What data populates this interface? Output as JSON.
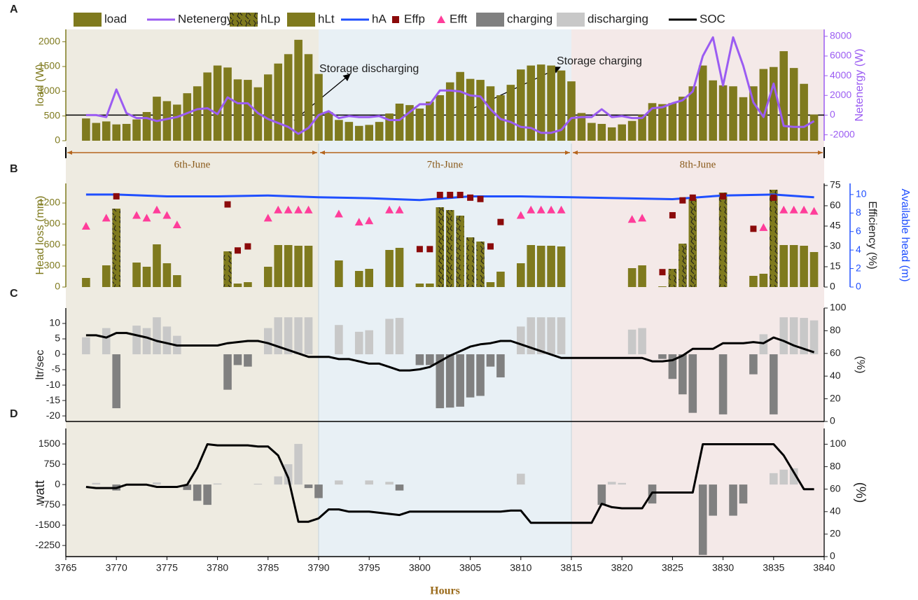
{
  "periods": [
    {
      "label": "6th-June",
      "start": 3765,
      "end": 3790,
      "color": "#eeebe1"
    },
    {
      "label": "7th-June",
      "start": 3790,
      "end": 3815,
      "color": "#e8f0f5"
    },
    {
      "label": "8th-June",
      "start": 3815,
      "end": 3840,
      "color": "#f4e9e8"
    }
  ],
  "chart_data": [
    {
      "label": "A",
      "type": "combo",
      "xlim": [
        3765,
        3840
      ],
      "ylim": [
        0,
        2250
      ],
      "yticks": [
        0,
        500,
        1000,
        1500,
        2000
      ],
      "ylabel": "load (W)",
      "y2lim": [
        -2600,
        8700
      ],
      "y2ticks": [
        -2000,
        0,
        2000,
        4000,
        6000,
        8000
      ],
      "y2label": "Netenergy (W)",
      "axis_colors": {
        "y": "#7f7a1e",
        "y2": "#9b5cf2"
      },
      "annotations": [
        "Storage discharging",
        "Storage charging"
      ],
      "x": [
        3767,
        3768,
        3769,
        3770,
        3771,
        3772,
        3773,
        3774,
        3775,
        3776,
        3777,
        3778,
        3779,
        3780,
        3781,
        3782,
        3783,
        3784,
        3785,
        3786,
        3787,
        3788,
        3789,
        3790,
        3791,
        3792,
        3793,
        3794,
        3795,
        3796,
        3797,
        3798,
        3799,
        3800,
        3801,
        3802,
        3803,
        3804,
        3805,
        3806,
        3807,
        3808,
        3809,
        3810,
        3811,
        3812,
        3813,
        3814,
        3815,
        3816,
        3817,
        3818,
        3819,
        3820,
        3821,
        3822,
        3823,
        3824,
        3825,
        3826,
        3827,
        3828,
        3829,
        3830,
        3831,
        3832,
        3833,
        3834,
        3835,
        3836,
        3837,
        3838,
        3839
      ],
      "series": [
        {
          "name": "load",
          "type": "bar",
          "color": "#7f7a1e",
          "values": [
            450,
            360,
            390,
            330,
            340,
            430,
            580,
            890,
            800,
            730,
            960,
            1100,
            1380,
            1520,
            1480,
            1240,
            1230,
            1080,
            1340,
            1560,
            1750,
            2040,
            1750,
            1350,
            580,
            420,
            380,
            300,
            320,
            380,
            550,
            750,
            720,
            650,
            790,
            920,
            1180,
            1390,
            1250,
            1230,
            1100,
            920,
            1130,
            1440,
            1520,
            1540,
            1520,
            1420,
            1200,
            560,
            360,
            340,
            270,
            330,
            400,
            520,
            760,
            740,
            760,
            890,
            1100,
            1520,
            1220,
            1120,
            1100,
            880,
            1100,
            1450,
            1490,
            1810,
            1470,
            1150,
            530
          ]
        },
        {
          "name": "Netenergy",
          "type": "line",
          "axis": "y2",
          "color": "#9b5cf2",
          "values": [
            0,
            0,
            -200,
            2600,
            200,
            -300,
            -300,
            -600,
            -400,
            -200,
            200,
            600,
            700,
            100,
            1800,
            1200,
            1200,
            200,
            -400,
            -800,
            -1200,
            -1900,
            -1300,
            0,
            400,
            -300,
            -100,
            -200,
            -200,
            -100,
            -500,
            -500,
            300,
            1100,
            1100,
            2500,
            2500,
            2400,
            2000,
            1900,
            600,
            -400,
            -700,
            -1200,
            -1300,
            -1800,
            -1800,
            -1500,
            -300,
            -200,
            -200,
            600,
            -200,
            -100,
            -300,
            -300,
            700,
            800,
            1200,
            1500,
            2400,
            6000,
            7900,
            3000,
            7900,
            5000,
            1300,
            -200,
            3200,
            -1100,
            -1200,
            -1200,
            -600
          ]
        }
      ]
    },
    {
      "label": "B",
      "type": "combo",
      "xlim": [
        3765,
        3840
      ],
      "ylim": [
        0,
        1480
      ],
      "yticks": [
        0,
        300,
        600,
        900,
        1200
      ],
      "ylabel": "Head loss (mm)",
      "y2lim": [
        0,
        76.5
      ],
      "y2ticks": [
        0,
        15,
        30,
        45,
        60,
        75
      ],
      "y2label": "Efficiency (%)",
      "y3lim": [
        0,
        11.2
      ],
      "y3ticks": [
        0,
        2,
        4,
        6,
        8,
        10
      ],
      "y3label": "Available head (m)",
      "axis_colors": {
        "y": "#7f7a1e",
        "y2": "#222222",
        "y3": "#1f4fff"
      },
      "series": [
        {
          "name": "hLp",
          "type": "bar",
          "hatch": true,
          "color": "#7f7a1e",
          "x": [
            3770,
            3781,
            3802,
            3803,
            3804,
            3805,
            3806,
            3825,
            3826,
            3827,
            3830,
            3835
          ],
          "values": [
            1120,
            510,
            1140,
            1100,
            1020,
            710,
            650,
            260,
            620,
            1260,
            1350,
            1390
          ]
        },
        {
          "name": "hLt",
          "type": "bar",
          "color": "#7f7a1e",
          "x": [
            3767,
            3769,
            3772,
            3773,
            3774,
            3775,
            3776,
            3782,
            3783,
            3785,
            3786,
            3787,
            3788,
            3789,
            3792,
            3794,
            3795,
            3797,
            3798,
            3800,
            3801,
            3807,
            3808,
            3810,
            3811,
            3812,
            3813,
            3814,
            3821,
            3822,
            3824,
            3833,
            3834,
            3836,
            3837,
            3838,
            3839
          ],
          "values": [
            130,
            310,
            350,
            290,
            610,
            340,
            170,
            50,
            70,
            290,
            600,
            600,
            590,
            590,
            380,
            230,
            260,
            530,
            560,
            50,
            50,
            70,
            220,
            340,
            600,
            590,
            590,
            580,
            270,
            310,
            10,
            160,
            190,
            600,
            600,
            590,
            500
          ]
        },
        {
          "name": "hA",
          "type": "line",
          "axis": "y3",
          "color": "#1f4fff",
          "x": [
            3767,
            3770,
            3775,
            3780,
            3785,
            3790,
            3795,
            3800,
            3805,
            3810,
            3815,
            3820,
            3825,
            3830,
            3835,
            3839
          ],
          "values": [
            10,
            10,
            9.8,
            9.8,
            9.9,
            9.7,
            9.6,
            9.4,
            9.8,
            9.8,
            9.7,
            9.6,
            9.5,
            9.9,
            10,
            9.7
          ]
        },
        {
          "name": "Effp",
          "type": "scatter",
          "marker": "square",
          "axis": "y2",
          "color": "#8b0a0a",
          "x": [
            3770,
            3781,
            3782,
            3783,
            3800,
            3801,
            3802,
            3803,
            3804,
            3805,
            3806,
            3807,
            3808,
            3824,
            3825,
            3826,
            3827,
            3830,
            3833,
            3835
          ],
          "values": [
            67,
            61,
            27,
            30,
            28,
            28,
            68,
            68,
            68,
            66,
            65,
            30,
            48,
            11,
            53,
            64,
            66,
            67,
            43,
            66
          ]
        },
        {
          "name": "Efft",
          "type": "scatter",
          "marker": "triangle",
          "axis": "y2",
          "color": "#ff3d9a",
          "x": [
            3767,
            3769,
            3772,
            3773,
            3774,
            3775,
            3776,
            3785,
            3786,
            3787,
            3788,
            3789,
            3792,
            3794,
            3795,
            3797,
            3798,
            3810,
            3811,
            3812,
            3813,
            3814,
            3821,
            3822,
            3834,
            3836,
            3837,
            3838,
            3839
          ],
          "values": [
            45,
            51,
            53,
            51,
            57,
            53,
            46,
            51,
            57,
            57,
            57,
            57,
            54,
            48,
            49,
            57,
            57,
            53,
            57,
            57,
            57,
            57,
            50,
            51,
            44,
            57,
            57,
            57,
            56
          ]
        }
      ]
    },
    {
      "label": "C",
      "type": "combo",
      "xlim": [
        3765,
        3840
      ],
      "ylim": [
        -21.8,
        15
      ],
      "yticks": [
        10,
        5,
        0,
        -5,
        -10,
        -15,
        -20
      ],
      "ylabel": "ltr/sec",
      "y2lim": [
        0,
        100
      ],
      "y2ticks": [
        0,
        20,
        40,
        60,
        80,
        100
      ],
      "y2label": "(%)",
      "axis_colors": {
        "y": "#222222",
        "y2": "#222222"
      },
      "series": [
        {
          "name": "charging",
          "type": "bar",
          "color": "#808080",
          "x": [
            3770,
            3781,
            3782,
            3783,
            3800,
            3801,
            3802,
            3803,
            3804,
            3805,
            3806,
            3807,
            3808,
            3824,
            3825,
            3826,
            3827,
            3830,
            3833,
            3835
          ],
          "values": [
            -17.5,
            -11.5,
            -3.5,
            -4,
            -3.5,
            -3.5,
            -17.5,
            -17.3,
            -17,
            -14,
            -13.5,
            -4,
            -7.5,
            -1.5,
            -8,
            -13,
            -19,
            -19.5,
            -6.5,
            -19.5
          ]
        },
        {
          "name": "discharging",
          "type": "bar",
          "color": "#c8c8c8",
          "x": [
            3767,
            3769,
            3772,
            3773,
            3774,
            3775,
            3776,
            3785,
            3786,
            3787,
            3788,
            3789,
            3792,
            3794,
            3795,
            3797,
            3798,
            3810,
            3811,
            3812,
            3813,
            3814,
            3821,
            3822,
            3834,
            3836,
            3837,
            3838,
            3839
          ],
          "values": [
            5.5,
            8.5,
            9.3,
            8.5,
            12,
            9,
            6,
            8.5,
            12,
            12,
            12,
            12,
            9.5,
            7.3,
            7.8,
            11.5,
            11.8,
            9,
            12,
            12,
            12,
            12,
            8,
            8.5,
            6.5,
            12,
            12,
            11.8,
            11
          ]
        },
        {
          "name": "SOC",
          "type": "line",
          "axis": "y2",
          "color": "#000000",
          "x": [
            3767,
            3768,
            3769,
            3770,
            3771,
            3772,
            3773,
            3774,
            3775,
            3776,
            3780,
            3781,
            3782,
            3783,
            3784,
            3785,
            3786,
            3787,
            3788,
            3789,
            3791,
            3792,
            3793,
            3794,
            3795,
            3796,
            3797,
            3798,
            3799,
            3800,
            3801,
            3802,
            3803,
            3804,
            3805,
            3806,
            3807,
            3808,
            3809,
            3810,
            3811,
            3812,
            3813,
            3814,
            3822,
            3823,
            3824,
            3825,
            3826,
            3827,
            3829,
            3830,
            3832,
            3833,
            3834,
            3835,
            3836,
            3837,
            3838,
            3839
          ],
          "values": [
            76,
            76,
            74,
            78,
            78,
            76,
            74,
            71,
            69,
            67,
            67,
            69,
            70,
            71,
            71,
            69,
            66,
            63,
            60,
            57,
            57,
            55,
            55,
            53,
            51,
            51,
            48,
            45,
            45,
            46,
            48,
            53,
            58,
            62,
            66,
            68,
            69,
            71,
            71,
            68,
            65,
            62,
            59,
            56,
            56,
            53,
            53,
            54,
            58,
            64,
            64,
            69,
            69,
            70,
            69,
            74,
            71,
            67,
            64,
            61
          ]
        }
      ]
    },
    {
      "label": "D",
      "type": "combo",
      "xlim": [
        3765,
        3840
      ],
      "xticks": [
        3765,
        3770,
        3775,
        3780,
        3785,
        3790,
        3795,
        3800,
        3805,
        3810,
        3815,
        3820,
        3825,
        3830,
        3835,
        3840
      ],
      "xlabel": "Hours",
      "ylim": [
        -2660,
        2070
      ],
      "yticks": [
        1500,
        750,
        0,
        -750,
        -1500,
        -2250
      ],
      "ylabel": "watt",
      "y2lim": [
        0,
        114
      ],
      "y2ticks": [
        0,
        20,
        40,
        60,
        80,
        100
      ],
      "y2label": "(%)",
      "axis_colors": {
        "y": "#222222",
        "y2": "#222222"
      },
      "series": [
        {
          "type": "bar",
          "color": "#808080",
          "x": [
            3770,
            3777,
            3778,
            3779,
            3789,
            3790,
            3798,
            3818,
            3823,
            3828,
            3829,
            3831,
            3832
          ],
          "values": [
            -220,
            -200,
            -600,
            -750,
            -130,
            -500,
            -220,
            -750,
            -700,
            -2600,
            -1150,
            -1150,
            -700
          ]
        },
        {
          "type": "bar",
          "color": "#c8c8c8",
          "x": [
            3768,
            3774,
            3780,
            3784,
            3786,
            3787,
            3788,
            3792,
            3795,
            3797,
            3810,
            3819,
            3820,
            3835,
            3836,
            3837
          ],
          "values": [
            60,
            80,
            40,
            30,
            300,
            750,
            1500,
            150,
            150,
            100,
            400,
            100,
            60,
            420,
            550,
            600
          ]
        },
        {
          "type": "line",
          "axis": "y2",
          "color": "#000000",
          "x": [
            3767,
            3768,
            3770,
            3771,
            3773,
            3774,
            3776,
            3777,
            3778,
            3779,
            3780,
            3783,
            3784,
            3785,
            3786,
            3787,
            3788,
            3789,
            3790,
            3791,
            3792,
            3793,
            3795,
            3797,
            3798,
            3799,
            3808,
            3809,
            3810,
            3811,
            3817,
            3818,
            3819,
            3820,
            3822,
            3823,
            3827,
            3828,
            3835,
            3836,
            3837,
            3838,
            3839
          ],
          "values": [
            62,
            61,
            61,
            64,
            64,
            62,
            62,
            64,
            79,
            100,
            99,
            99,
            98,
            98,
            90,
            70,
            31,
            31,
            34,
            42,
            42,
            40,
            40,
            38,
            37,
            40,
            40,
            41,
            41,
            30,
            30,
            47,
            44,
            43,
            43,
            57,
            57,
            100,
            100,
            90,
            75,
            60,
            60
          ]
        }
      ]
    }
  ]
}
